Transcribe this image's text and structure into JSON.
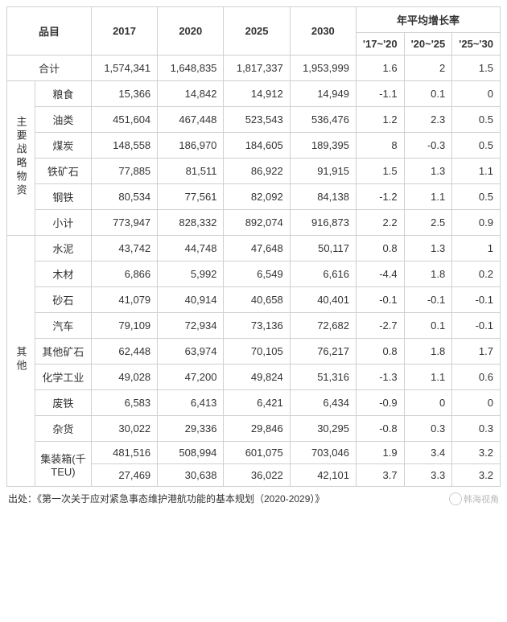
{
  "headers": {
    "item": "品目",
    "y2017": "2017",
    "y2020": "2020",
    "y2025": "2025",
    "y2030": "2030",
    "growth": "年平均增长率",
    "g1": "'17~'20",
    "g2": "'20~'25",
    "g3": "'25~'30"
  },
  "total": {
    "label": "合计",
    "v17": "1,574,341",
    "v20": "1,648,835",
    "v25": "1,817,337",
    "v30": "1,953,999",
    "g1": "1.6",
    "g2": "2",
    "g3": "1.5"
  },
  "groupA": {
    "title": "主要战略物资",
    "rows": [
      {
        "label": "粮食",
        "v17": "15,366",
        "v20": "14,842",
        "v25": "14,912",
        "v30": "14,949",
        "g1": "-1.1",
        "g2": "0.1",
        "g3": "0"
      },
      {
        "label": "油类",
        "v17": "451,604",
        "v20": "467,448",
        "v25": "523,543",
        "v30": "536,476",
        "g1": "1.2",
        "g2": "2.3",
        "g3": "0.5"
      },
      {
        "label": "煤炭",
        "v17": "148,558",
        "v20": "186,970",
        "v25": "184,605",
        "v30": "189,395",
        "g1": "8",
        "g2": "-0.3",
        "g3": "0.5"
      },
      {
        "label": "铁矿石",
        "v17": "77,885",
        "v20": "81,511",
        "v25": "86,922",
        "v30": "91,915",
        "g1": "1.5",
        "g2": "1.3",
        "g3": "1.1"
      },
      {
        "label": "钢铁",
        "v17": "80,534",
        "v20": "77,561",
        "v25": "82,092",
        "v30": "84,138",
        "g1": "-1.2",
        "g2": "1.1",
        "g3": "0.5"
      },
      {
        "label": "小计",
        "v17": "773,947",
        "v20": "828,332",
        "v25": "892,074",
        "v30": "916,873",
        "g1": "2.2",
        "g2": "2.5",
        "g3": "0.9"
      }
    ]
  },
  "groupB": {
    "title": "其他",
    "rows": [
      {
        "label": "水泥",
        "v17": "43,742",
        "v20": "44,748",
        "v25": "47,648",
        "v30": "50,117",
        "g1": "0.8",
        "g2": "1.3",
        "g3": "1"
      },
      {
        "label": "木材",
        "v17": "6,866",
        "v20": "5,992",
        "v25": "6,549",
        "v30": "6,616",
        "g1": "-4.4",
        "g2": "1.8",
        "g3": "0.2"
      },
      {
        "label": "砂石",
        "v17": "41,079",
        "v20": "40,914",
        "v25": "40,658",
        "v30": "40,401",
        "g1": "-0.1",
        "g2": "-0.1",
        "g3": "-0.1"
      },
      {
        "label": "汽车",
        "v17": "79,109",
        "v20": "72,934",
        "v25": "73,136",
        "v30": "72,682",
        "g1": "-2.7",
        "g2": "0.1",
        "g3": "-0.1"
      },
      {
        "label": "其他矿石",
        "v17": "62,448",
        "v20": "63,974",
        "v25": "70,105",
        "v30": "76,217",
        "g1": "0.8",
        "g2": "1.8",
        "g3": "1.7"
      },
      {
        "label": "化学工业",
        "v17": "49,028",
        "v20": "47,200",
        "v25": "49,824",
        "v30": "51,316",
        "g1": "-1.3",
        "g2": "1.1",
        "g3": "0.6"
      },
      {
        "label": "废铁",
        "v17": "6,583",
        "v20": "6,413",
        "v25": "6,421",
        "v30": "6,434",
        "g1": "-0.9",
        "g2": "0",
        "g3": "0"
      },
      {
        "label": "杂货",
        "v17": "30,022",
        "v20": "29,336",
        "v25": "29,846",
        "v30": "30,295",
        "g1": "-0.8",
        "g2": "0.3",
        "g3": "0.3"
      },
      {
        "label": "集装箱(千TEU)",
        "v17": "481,516",
        "v20": "508,994",
        "v25": "601,075",
        "v30": "703,046",
        "g1": "1.9",
        "g2": "3.4",
        "g3": "3.2"
      }
    ],
    "extra": {
      "v17": "27,469",
      "v20": "30,638",
      "v25": "36,022",
      "v30": "42,101",
      "g1": "3.7",
      "g2": "3.3",
      "g3": "3.2"
    }
  },
  "source_label": "出处：《第一次关于应对紧急事态维护港航功能的基本规划（2020-2029）》",
  "watermark": "韩海视角"
}
